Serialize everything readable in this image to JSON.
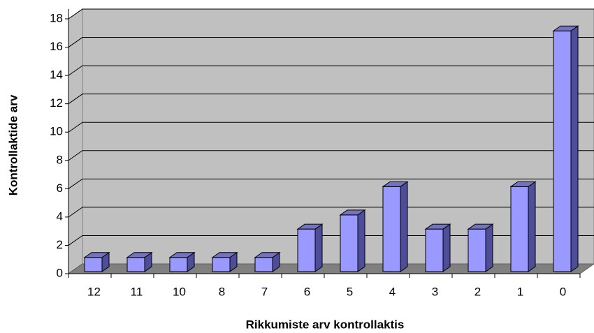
{
  "chart_data": {
    "type": "bar3d",
    "x_label": "Rikkumiste arv kontrollaktis",
    "y_label": "Kontrollaktide arv",
    "categories": [
      "12",
      "11",
      "10",
      "8",
      "7",
      "6",
      "5",
      "4",
      "3",
      "2",
      "1",
      "0"
    ],
    "values": [
      1,
      1,
      1,
      1,
      1,
      3,
      4,
      6,
      3,
      3,
      6,
      17
    ],
    "color": "#9999ff",
    "ylim": [
      0,
      18
    ],
    "yticks": [
      0,
      2,
      4,
      6,
      8,
      10,
      12,
      14,
      16,
      18
    ],
    "grid": true
  }
}
